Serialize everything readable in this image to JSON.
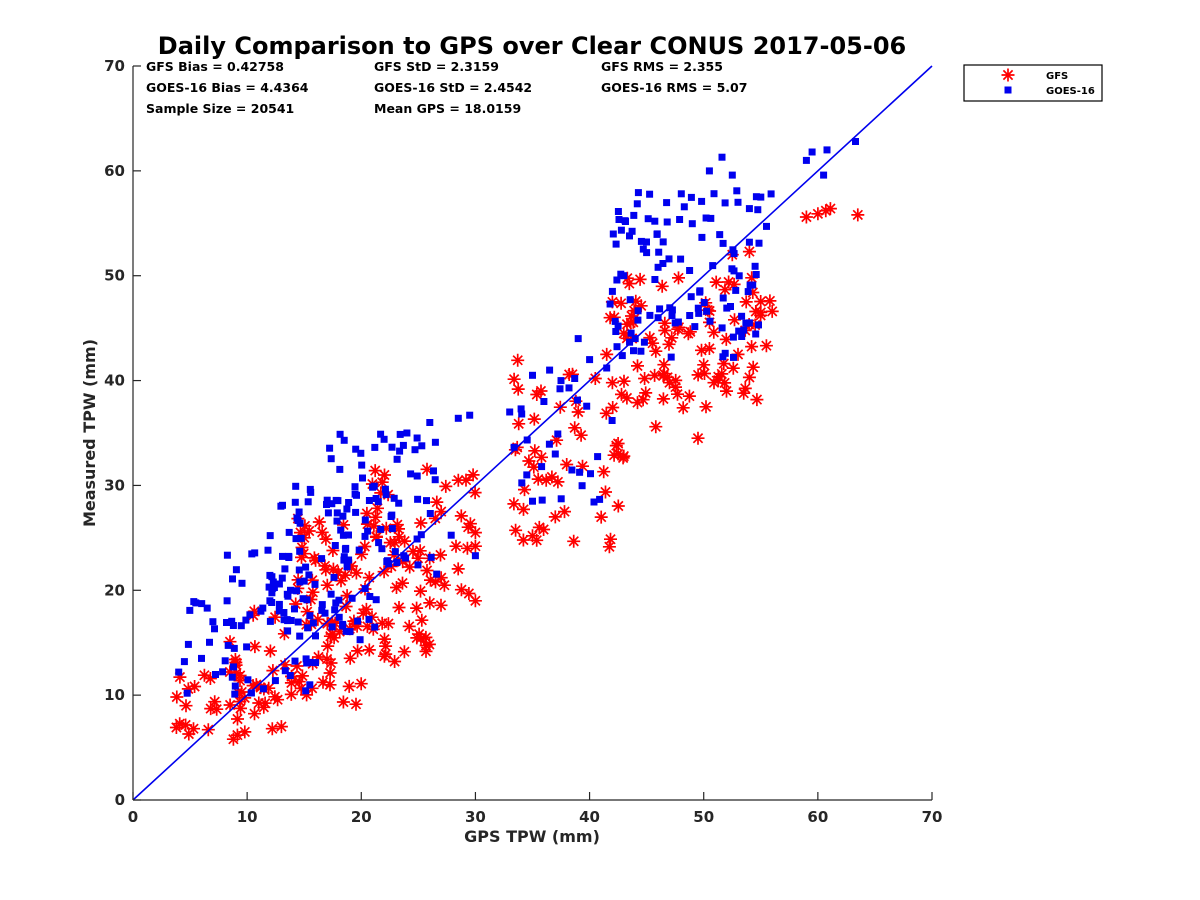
{
  "chart_data": {
    "type": "scatter",
    "title": "Daily Comparison to GPS over Clear CONUS 2017-05-06",
    "xlabel": "GPS TPW (mm)",
    "ylabel": "Measured TPW (mm)",
    "xlim": [
      0,
      70
    ],
    "ylim": [
      0,
      70
    ],
    "xticks": [
      "0",
      "10",
      "20",
      "30",
      "40",
      "50",
      "60",
      "70"
    ],
    "yticks": [
      "0",
      "10",
      "20",
      "30",
      "40",
      "50",
      "60",
      "70"
    ],
    "grid": false,
    "legend_position": "outside-top-right",
    "stats": [
      "GFS Bias = 0.42758",
      "GFS StD = 2.3159",
      "GFS RMS = 2.355",
      "GOES-16 Bias = 4.4364",
      "GOES-16 StD = 2.4542",
      "GOES-16 RMS = 5.07",
      "Sample Size = 20541",
      "Mean GPS = 18.0159"
    ],
    "reference_line": {
      "name": "1:1",
      "color": "#0000ee",
      "points": [
        [
          0,
          0
        ],
        [
          70,
          70
        ]
      ]
    },
    "series": [
      {
        "name": "GFS",
        "marker": "asterisk",
        "color": "#ff0000",
        "clusters": [
          {
            "x_range": [
              3.5,
              12
            ],
            "y_range": [
              6,
              12
            ],
            "density": 0.85
          },
          {
            "x_range": [
              8,
              20
            ],
            "y_range": [
              8,
              18
            ],
            "density": 0.9
          },
          {
            "x_range": [
              14,
              26
            ],
            "y_range": [
              13,
              27
            ],
            "density": 0.9
          },
          {
            "x_range": [
              20,
              30
            ],
            "y_range": [
              18,
              32
            ],
            "density": 0.45
          },
          {
            "x_range": [
              33,
              43
            ],
            "y_range": [
              24,
              42
            ],
            "density": 0.35
          },
          {
            "x_range": [
              42,
              56
            ],
            "y_range": [
              38,
              50
            ],
            "density": 0.8
          }
        ],
        "points": [
          [
            5.3,
            6.8
          ],
          [
            8.8,
            5.8
          ],
          [
            12.2,
            6.8
          ],
          [
            13,
            7
          ],
          [
            30,
            19
          ],
          [
            26,
            18.8
          ],
          [
            26.5,
            20.8
          ],
          [
            27,
            21.2
          ],
          [
            34.2,
            24.8
          ],
          [
            35,
            25.2
          ],
          [
            35.6,
            26
          ],
          [
            37,
            27
          ],
          [
            37.8,
            27.5
          ],
          [
            34.3,
            29.6
          ],
          [
            35.5,
            30.6
          ],
          [
            38,
            32
          ],
          [
            42.5,
            33
          ],
          [
            43,
            32.8
          ],
          [
            42.5,
            34
          ],
          [
            45.8,
            35.6
          ],
          [
            49.5,
            34.5
          ],
          [
            48.2,
            37.4
          ],
          [
            50.2,
            37.5
          ],
          [
            44.2,
            37.9
          ],
          [
            52,
            39
          ],
          [
            53.5,
            38.8
          ],
          [
            54,
            40.3
          ],
          [
            47,
            39.8
          ],
          [
            50.9,
            39.8
          ],
          [
            42,
            39.8
          ],
          [
            40.5,
            40.2
          ],
          [
            38.5,
            40.6
          ],
          [
            39,
            37
          ],
          [
            38.7,
            35.5
          ],
          [
            52.5,
            52
          ],
          [
            54,
            52.3
          ],
          [
            59,
            55.6
          ],
          [
            60,
            55.9
          ],
          [
            60.7,
            56.2
          ],
          [
            61.1,
            56.4
          ],
          [
            63.5,
            55.8
          ],
          [
            56,
            46.6
          ],
          [
            55,
            46.5
          ],
          [
            52.7,
            45.8
          ],
          [
            54.5,
            45.3
          ],
          [
            54.3,
            48.4
          ],
          [
            54.2,
            49.8
          ],
          [
            42,
            47.5
          ],
          [
            41.8,
            46
          ],
          [
            41.5,
            42.5
          ],
          [
            43.6,
            45.5
          ],
          [
            43,
            44.5
          ],
          [
            45.8,
            42.8
          ],
          [
            50,
            41.5
          ],
          [
            53,
            42.5
          ],
          [
            30,
            25.5
          ],
          [
            30,
            24.2
          ],
          [
            29.3,
            24
          ],
          [
            28.3,
            24.2
          ],
          [
            27,
            27.5
          ],
          [
            28.5,
            30.5
          ],
          [
            29.8,
            31
          ],
          [
            33.5,
            33.4
          ],
          [
            35.2,
            33.3
          ],
          [
            36.2,
            30.5
          ],
          [
            36.7,
            30.8
          ]
        ]
      },
      {
        "name": "GOES-16",
        "marker": "square",
        "color": "#0000ee",
        "clusters": [
          {
            "x_range": [
              3.5,
              9
            ],
            "y_range": [
              10,
              19
            ],
            "density": 0.6
          },
          {
            "x_range": [
              8,
              16
            ],
            "y_range": [
              10,
              24
            ],
            "density": 0.95
          },
          {
            "x_range": [
              12,
              22
            ],
            "y_range": [
              15,
              30
            ],
            "density": 0.95
          },
          {
            "x_range": [
              17,
              28
            ],
            "y_range": [
              21,
              35
            ],
            "density": 0.7
          },
          {
            "x_range": [
              33,
              42
            ],
            "y_range": [
              28,
              41
            ],
            "density": 0.3
          },
          {
            "x_range": [
              42,
              55
            ],
            "y_range": [
              42,
              58
            ],
            "density": 0.85
          }
        ],
        "points": [
          [
            5.5,
            18.8
          ],
          [
            6.5,
            18.3
          ],
          [
            7,
            17
          ],
          [
            4,
            12.2
          ],
          [
            4.5,
            13.2
          ],
          [
            6,
            13.5
          ],
          [
            18.5,
            34.3
          ],
          [
            22,
            34.4
          ],
          [
            24,
            35
          ],
          [
            28.5,
            36.4
          ],
          [
            29.5,
            36.7
          ],
          [
            26,
            36
          ],
          [
            33,
            37
          ],
          [
            34,
            37.3
          ],
          [
            35,
            40.5
          ],
          [
            36.5,
            41
          ],
          [
            37.5,
            40
          ],
          [
            38.2,
            39.3
          ],
          [
            36,
            38
          ],
          [
            38.7,
            40.2
          ],
          [
            34.5,
            31
          ],
          [
            35,
            28.5
          ],
          [
            35.8,
            31.8
          ],
          [
            37,
            33
          ],
          [
            30,
            23.3
          ],
          [
            39,
            44
          ],
          [
            40,
            42
          ],
          [
            41.5,
            41.2
          ],
          [
            42,
            48.5
          ],
          [
            41.8,
            47.3
          ],
          [
            42.5,
            45.2
          ],
          [
            43,
            50
          ],
          [
            43.5,
            53.8
          ],
          [
            45,
            52.2
          ],
          [
            46,
            50.8
          ],
          [
            50.5,
            60
          ],
          [
            51.6,
            61.3
          ],
          [
            52.5,
            59.6
          ],
          [
            52.9,
            58.1
          ],
          [
            53,
            57
          ],
          [
            54,
            56.4
          ],
          [
            55,
            57.5
          ],
          [
            55.9,
            57.8
          ],
          [
            55.5,
            54.7
          ],
          [
            54,
            53.2
          ],
          [
            54.5,
            50.9
          ],
          [
            59,
            61
          ],
          [
            59.5,
            61.8
          ],
          [
            60.8,
            62
          ],
          [
            60.5,
            59.6
          ],
          [
            63.3,
            62.8
          ],
          [
            54,
            45.5
          ],
          [
            53.5,
            44.8
          ],
          [
            52.8,
            48.6
          ],
          [
            48.9,
            48
          ],
          [
            47.5,
            45.5
          ],
          [
            46,
            46
          ],
          [
            44,
            44
          ],
          [
            44.5,
            42.8
          ]
        ]
      }
    ]
  }
}
